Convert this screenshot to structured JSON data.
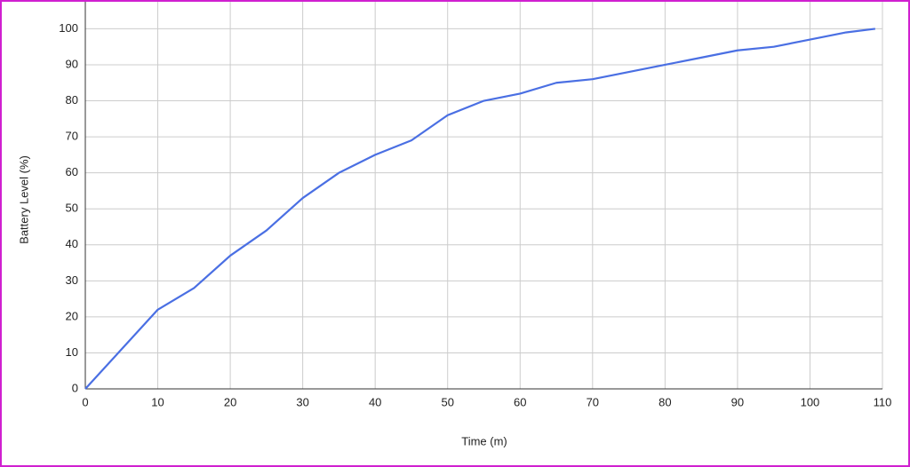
{
  "chart_data": {
    "type": "line",
    "x_label": "Time (m)",
    "y_label": "Battery Level (%)",
    "x": [
      0,
      5,
      10,
      15,
      20,
      25,
      30,
      35,
      40,
      45,
      50,
      55,
      60,
      65,
      70,
      75,
      80,
      85,
      90,
      95,
      100,
      105,
      109
    ],
    "series": [
      {
        "name": "Battery Level (%)",
        "color": "#4a6fe3",
        "values": [
          0,
          11,
          22,
          28,
          37,
          44,
          53,
          60,
          65,
          69,
          76,
          80,
          82,
          85,
          86,
          88,
          90,
          92,
          94,
          95,
          97,
          99,
          100
        ]
      }
    ],
    "xlim": [
      0,
      110
    ],
    "xticks": [
      0,
      10,
      20,
      30,
      40,
      50,
      60,
      70,
      80,
      90,
      100,
      110
    ],
    "ylim": [
      0,
      107.5
    ],
    "yticks": [
      0,
      10,
      20,
      30,
      40,
      50,
      60,
      70,
      80,
      90,
      100
    ],
    "grid": true
  }
}
